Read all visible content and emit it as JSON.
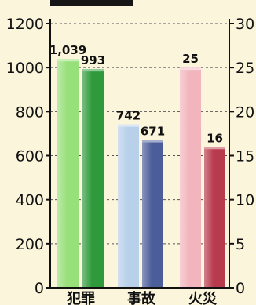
{
  "chart_data": {
    "type": "bar",
    "title": "",
    "categories": [
      "犯罪",
      "事故",
      "火災"
    ],
    "left_axis": {
      "min": 0,
      "max": 1200,
      "ticks": [
        0,
        200,
        400,
        600,
        800,
        1000,
        1200
      ]
    },
    "right_axis": {
      "min": 0,
      "max": 30,
      "ticks": [
        0,
        5,
        10,
        15,
        20,
        25,
        30
      ]
    },
    "grid": "dashed",
    "bars": [
      {
        "category": "犯罪",
        "value": 1039,
        "label": "1,039",
        "axis": "left",
        "color": "#98e07a"
      },
      {
        "category": "犯罪",
        "value": 993,
        "label": "993",
        "axis": "left",
        "color": "#2f9a3c"
      },
      {
        "category": "事故",
        "value": 742,
        "label": "742",
        "axis": "left",
        "color": "#b9d0ea"
      },
      {
        "category": "事故",
        "value": 671,
        "label": "671",
        "axis": "left",
        "color": "#4c5e9a"
      },
      {
        "category": "火災",
        "value": 25,
        "label": "25",
        "axis": "right",
        "color": "#f2b5bd"
      },
      {
        "category": "火災",
        "value": 16,
        "label": "16",
        "axis": "right",
        "color": "#b83a4d"
      }
    ]
  },
  "colors": {
    "background": "#fbf5dc",
    "axis": "#111111",
    "grid": "#555555"
  }
}
